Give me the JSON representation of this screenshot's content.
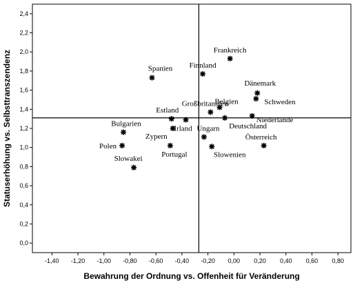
{
  "chart_data": {
    "type": "scatter",
    "xlabel": "Bewahrung der Ordnung vs. Offenheit für Veränderung",
    "ylabel": "Statuserhöhung vs. Selbsttranszendenz",
    "xlim": [
      -1.55,
      0.9
    ],
    "ylim": [
      -0.1,
      2.5
    ],
    "x_ticks": [
      "-1,40",
      "-1,20",
      "-1,00",
      "-0,80",
      "-0,60",
      "-0,40",
      "-0,20",
      "0,00",
      "0,20",
      "0,40",
      "0,60",
      "0,80"
    ],
    "y_ticks": [
      "0,0",
      "0,2",
      "0,4",
      "0,6",
      "0,8",
      "1,0",
      "1,2",
      "1,4",
      "1,6",
      "1,8",
      "2,0",
      "2,2",
      "2,4"
    ],
    "reference_lines": {
      "x": -0.27,
      "y": 1.31
    },
    "grid": false,
    "marker": "asterisk",
    "points": [
      {
        "label": "Frankreich",
        "x": -0.03,
        "y": 1.93
      },
      {
        "label": "Finnland",
        "x": -0.24,
        "y": 1.77
      },
      {
        "label": "Spanien",
        "x": -0.63,
        "y": 1.73
      },
      {
        "label": "Dänemark",
        "x": 0.18,
        "y": 1.57
      },
      {
        "label": "Schweden",
        "x": 0.17,
        "y": 1.51
      },
      {
        "label": "Belgien",
        "x": -0.11,
        "y": 1.42
      },
      {
        "label": "Großbritannien",
        "x": -0.18,
        "y": 1.37
      },
      {
        "label": "Niederlande",
        "x": 0.14,
        "y": 1.33
      },
      {
        "label": "Deutschland",
        "x": -0.07,
        "y": 1.31
      },
      {
        "label": "Estland",
        "x": -0.48,
        "y": 1.3
      },
      {
        "label": "Irland",
        "x": -0.37,
        "y": 1.29
      },
      {
        "label": "Ungarn",
        "x": -0.23,
        "y": 1.11
      },
      {
        "label": "Zypern",
        "x": -0.47,
        "y": 1.2
      },
      {
        "label": "Bulgarien",
        "x": -0.85,
        "y": 1.16
      },
      {
        "label": "Polen",
        "x": -0.86,
        "y": 1.02
      },
      {
        "label": "Portugal",
        "x": -0.49,
        "y": 1.02
      },
      {
        "label": "Slowenien",
        "x": -0.17,
        "y": 1.01
      },
      {
        "label": "Österreich",
        "x": 0.23,
        "y": 1.02
      },
      {
        "label": "Slowakei",
        "x": -0.77,
        "y": 0.79
      }
    ]
  }
}
